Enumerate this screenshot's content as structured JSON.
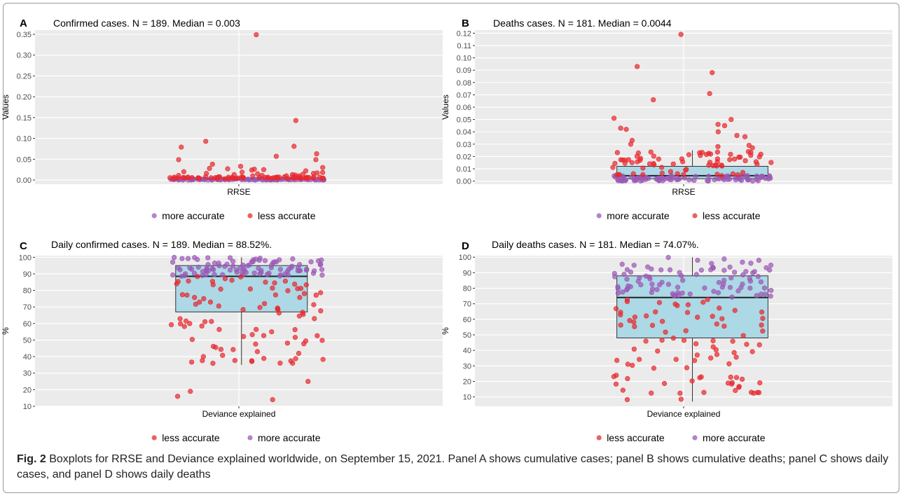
{
  "colors": {
    "more_accurate": "#9b59b6",
    "less_accurate": "#e8292f",
    "box_fill": "#add8e6",
    "panel_bg": "#ebebeb",
    "grid": "#ffffff"
  },
  "legend_labels": {
    "more": "more accurate",
    "less": "less accurate"
  },
  "caption": {
    "label": "Fig. 2",
    "text": " Boxplots for RRSE and Deviance explained worldwide, on September 15, 2021. Panel A shows cumulative cases; panel B shows cumulative deaths; panel C shows daily cases, and panel D shows daily deaths"
  },
  "chart_data": [
    {
      "type": "box",
      "panel": "A",
      "title": "Confirmed cases. N = 189. Median = 0.003",
      "xlabel": "RRSE",
      "ylabel": "Values",
      "category": "RRSE",
      "ylim": [
        -0.01,
        0.36
      ],
      "yticks": [
        0.0,
        0.05,
        0.1,
        0.15,
        0.2,
        0.25,
        0.3,
        0.35
      ],
      "tick_labels": [
        "0.00",
        "0.05",
        "0.10",
        "0.15",
        "0.20",
        "0.25",
        "0.30",
        "0.35"
      ],
      "box": {
        "q1": 0.001,
        "median": 0.003,
        "q3": 0.005,
        "whisker_low": 0.0,
        "whisker_high": 0.008
      },
      "legend_order": [
        "more",
        "less"
      ],
      "n_more": 94,
      "n_less": 95,
      "outliers_less": [
        0.349,
        0.143,
        0.093,
        0.081,
        0.079,
        0.063,
        0.057,
        0.049,
        0.049,
        0.038,
        0.033,
        0.03,
        0.028,
        0.027,
        0.026,
        0.025,
        0.024,
        0.022,
        0.02,
        0.019,
        0.018,
        0.017,
        0.016,
        0.016,
        0.015,
        0.014,
        0.013,
        0.013,
        0.012,
        0.011,
        0.011,
        0.01,
        0.01,
        0.01
      ],
      "seed": 11
    },
    {
      "type": "box",
      "panel": "B",
      "title": "Deaths cases. N = 181. Median = 0.0044",
      "xlabel": "RRSE",
      "ylabel": "Values",
      "category": "RRSE",
      "ylim": [
        -0.0025,
        0.1225
      ],
      "yticks": [
        0.0,
        0.01,
        0.02,
        0.03,
        0.04,
        0.05,
        0.06,
        0.07,
        0.08,
        0.09,
        0.1,
        0.11,
        0.12
      ],
      "tick_labels": [
        "0.00",
        "0.01",
        "0.02",
        "0.03",
        "0.04",
        "0.05",
        "0.06",
        "0.07",
        "0.08",
        "0.09",
        "0.10",
        "0.11",
        "0.12"
      ],
      "box": {
        "q1": 0.002,
        "median": 0.0044,
        "q3": 0.012,
        "whisker_low": 0.0,
        "whisker_high": 0.025
      },
      "legend_order": [
        "more",
        "less"
      ],
      "n_more": 90,
      "n_less": 91,
      "outliers_less": [
        0.119,
        0.093,
        0.088,
        0.071,
        0.066,
        0.051,
        0.05,
        0.046,
        0.045,
        0.043,
        0.042,
        0.04,
        0.037,
        0.036,
        0.033,
        0.03,
        0.029,
        0.028,
        0.027
      ],
      "seed": 23
    },
    {
      "type": "box",
      "panel": "C",
      "title": "Daily confirmed cases. N = 189. Median = 88.52%.",
      "xlabel": "Deviance explained",
      "ylabel": "%",
      "category": "Deviance explained",
      "ylim": [
        10,
        101
      ],
      "yticks": [
        10,
        20,
        30,
        40,
        50,
        60,
        70,
        80,
        90,
        100
      ],
      "tick_labels": [
        "10",
        "20",
        "30",
        "40",
        "50",
        "60",
        "70",
        "80",
        "90",
        "100"
      ],
      "box": {
        "q1": 67,
        "median": 88.52,
        "q3": 95,
        "whisker_low": 35,
        "whisker_high": 100
      },
      "legend_order": [
        "less",
        "more"
      ],
      "n_more": 95,
      "n_less": 94,
      "outliers_less": [
        25,
        19,
        16,
        14
      ],
      "seed": 37
    },
    {
      "type": "box",
      "panel": "D",
      "title": "Daily deaths cases. N = 181. Median = 74.07%.",
      "xlabel": "Deviance explained",
      "ylabel": "%",
      "category": "Deviance explained",
      "ylim": [
        4,
        101
      ],
      "yticks": [
        10,
        20,
        30,
        40,
        50,
        60,
        70,
        80,
        90,
        100
      ],
      "tick_labels": [
        "10",
        "20",
        "30",
        "40",
        "50",
        "60",
        "70",
        "80",
        "90",
        "100"
      ],
      "box": {
        "q1": 48,
        "median": 74.07,
        "q3": 88,
        "whisker_low": 7,
        "whisker_high": 100
      },
      "legend_order": [
        "less",
        "more"
      ],
      "n_more": 90,
      "n_less": 91,
      "outliers_less": [],
      "seed": 53
    }
  ]
}
